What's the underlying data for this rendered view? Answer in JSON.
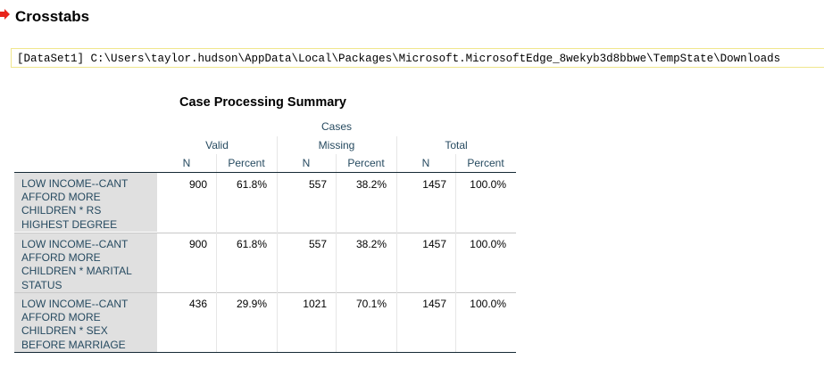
{
  "heading": "Crosstabs",
  "dataset_path": "[DataSet1] C:\\Users\\taylor.hudson\\AppData\\Local\\Packages\\Microsoft.MicrosoftEdge_8wekyb3d8bbwe\\TempState\\Downloads",
  "table": {
    "title": "Case Processing Summary",
    "cases_label": "Cases",
    "groups": [
      "Valid",
      "Missing",
      "Total"
    ],
    "subheaders": [
      "N",
      "Percent",
      "N",
      "Percent",
      "N",
      "Percent"
    ],
    "rows": [
      {
        "label_lines": [
          "LOW INCOME--CANT",
          "AFFORD MORE",
          "CHILDREN * RS",
          "HIGHEST DEGREE"
        ],
        "values": [
          "900",
          "61.8%",
          "557",
          "38.2%",
          "1457",
          "100.0%"
        ]
      },
      {
        "label_lines": [
          "LOW INCOME--CANT",
          "AFFORD MORE",
          "CHILDREN * MARITAL",
          "STATUS"
        ],
        "values": [
          "900",
          "61.8%",
          "557",
          "38.2%",
          "1457",
          "100.0%"
        ]
      },
      {
        "label_lines": [
          "LOW INCOME--CANT",
          "AFFORD MORE",
          "CHILDREN * SEX",
          "BEFORE MARRIAGE"
        ],
        "values": [
          "436",
          "29.9%",
          "1021",
          "70.1%",
          "1457",
          "100.0%"
        ]
      }
    ]
  },
  "colors": {
    "header_text": "#264a60",
    "row_label_bg": "#e0e0e0",
    "arrow": "#e8231b",
    "dataset_border": "#f0e68c"
  }
}
